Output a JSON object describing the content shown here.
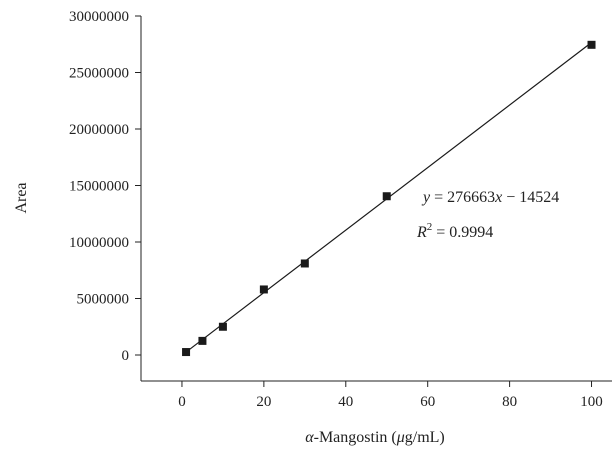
{
  "chart_data": {
    "type": "scatter",
    "xlabel_greek": "α",
    "xlabel_mid": "-Mangostin (",
    "xlabel_mu": "μ",
    "xlabel_unit": "g/mL)",
    "ylabel": "Area",
    "xlim": [
      -10,
      105
    ],
    "ylim": [
      -2300000,
      30000000
    ],
    "x_ticks": [
      0,
      20,
      40,
      60,
      80,
      100
    ],
    "y_ticks": [
      0,
      5000000,
      10000000,
      15000000,
      20000000,
      25000000,
      30000000
    ],
    "x_tick_labels": [
      "0",
      "20",
      "40",
      "60",
      "80",
      "100"
    ],
    "y_tick_labels": [
      "0",
      "5000000",
      "10000000",
      "15000000",
      "20000000",
      "25000000",
      "30000000"
    ],
    "points": [
      {
        "x": 1,
        "y": 262139
      },
      {
        "x": 5,
        "y": 1250000
      },
      {
        "x": 10,
        "y": 2500000
      },
      {
        "x": 20,
        "y": 5800000
      },
      {
        "x": 30,
        "y": 8100000
      },
      {
        "x": 50,
        "y": 14050000
      },
      {
        "x": 100,
        "y": 27450000
      }
    ],
    "fit": {
      "slope": 276663,
      "intercept": -14524,
      "x_range": [
        1,
        100
      ],
      "equation_y": "y",
      "equation_mid": " = 276663",
      "equation_x": "x",
      "equation_tail": " − 14524",
      "r2_label": "R",
      "r2_sup": "2",
      "r2_value": " = 0.9994"
    },
    "marker_color": "#1a1a1a",
    "line_color": "#1a1a1a"
  }
}
